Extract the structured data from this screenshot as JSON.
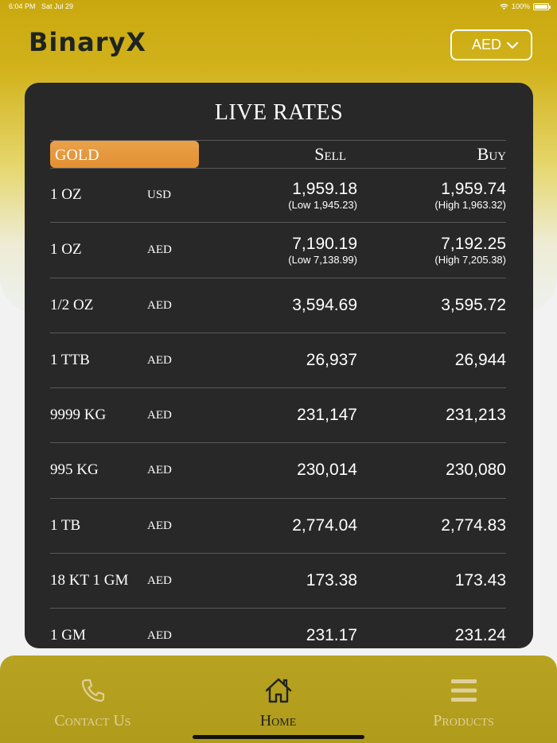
{
  "status_bar": {
    "time": "6:04 PM",
    "date": "Sat Jul 29",
    "battery": "100%",
    "icons": [
      "wifi-icon",
      "battery-icon"
    ]
  },
  "header": {
    "logo": "BinaryX",
    "currency": {
      "selected": "AED",
      "icon": "chevron-down-icon"
    }
  },
  "live_rates": {
    "title": "LIVE RATES",
    "tab": "GOLD",
    "columns": {
      "sell": "Sell",
      "buy": "Buy"
    },
    "rows": [
      {
        "name": "1 OZ",
        "currency": "USD",
        "sell": "1,959.18",
        "sell_sub": "(Low 1,945.23)",
        "buy": "1,959.74",
        "buy_sub": "(High 1,963.32)"
      },
      {
        "name": "1 OZ",
        "currency": "AED",
        "sell": "7,190.19",
        "sell_sub": "(Low 7,138.99)",
        "buy": "7,192.25",
        "buy_sub": "(High 7,205.38)"
      },
      {
        "name": "1/2 OZ",
        "currency": "AED",
        "sell": "3,594.69",
        "sell_sub": "",
        "buy": "3,595.72",
        "buy_sub": ""
      },
      {
        "name": "1 TTB",
        "currency": "AED",
        "sell": "26,937",
        "sell_sub": "",
        "buy": "26,944",
        "buy_sub": ""
      },
      {
        "name": "9999 KG",
        "currency": "AED",
        "sell": "231,147",
        "sell_sub": "",
        "buy": "231,213",
        "buy_sub": ""
      },
      {
        "name": "995 KG",
        "currency": "AED",
        "sell": "230,014",
        "sell_sub": "",
        "buy": "230,080",
        "buy_sub": ""
      },
      {
        "name": "1 TB",
        "currency": "AED",
        "sell": "2,774.04",
        "sell_sub": "",
        "buy": "2,774.83",
        "buy_sub": ""
      },
      {
        "name": "18 KT 1 GM",
        "currency": "AED",
        "sell": "173.38",
        "sell_sub": "",
        "buy": "173.43",
        "buy_sub": ""
      },
      {
        "name": "1 GM",
        "currency": "AED",
        "sell": "231.17",
        "sell_sub": "",
        "buy": "231.24",
        "buy_sub": ""
      }
    ]
  },
  "nav": {
    "items": [
      {
        "label": "Contact Us",
        "icon": "phone-icon",
        "active": false
      },
      {
        "label": "Home",
        "icon": "home-icon",
        "active": true
      },
      {
        "label": "Products",
        "icon": "menu-icon",
        "active": false
      }
    ]
  },
  "colors": {
    "header_gold": "#c9a80f",
    "card_bg": "#282828",
    "tab_orange": "#e5953a",
    "nav_bg": "#b5a01f",
    "nav_inactive": "#dfd09a",
    "nav_active": "#1f2421"
  }
}
